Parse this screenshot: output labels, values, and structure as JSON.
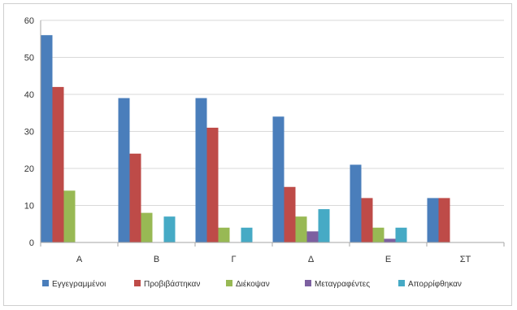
{
  "chart_data": {
    "type": "bar",
    "categories": [
      "Α",
      "Β",
      "Γ",
      "Δ",
      "Ε",
      "ΣΤ"
    ],
    "series": [
      {
        "name": "Εγγεγραμμένοι",
        "color": "#4a7ebb",
        "values": [
          56,
          39,
          39,
          34,
          21,
          12
        ]
      },
      {
        "name": "Προβιβάστηκαν",
        "color": "#be4b48",
        "values": [
          42,
          24,
          31,
          15,
          12,
          12
        ]
      },
      {
        "name": "Διέκοψαν",
        "color": "#98b954",
        "values": [
          14,
          8,
          4,
          7,
          4,
          0
        ]
      },
      {
        "name": "Μεταγραφέντες",
        "color": "#7d60a0",
        "values": [
          0,
          0,
          0,
          3,
          1,
          0
        ]
      },
      {
        "name": "Απορρίφθηκαν",
        "color": "#46aac5",
        "values": [
          0,
          7,
          4,
          9,
          4,
          0
        ]
      }
    ],
    "ylim": [
      0,
      60
    ],
    "yticks": [
      0,
      10,
      20,
      30,
      40,
      50,
      60
    ],
    "grid": true,
    "legend_position": "bottom"
  }
}
